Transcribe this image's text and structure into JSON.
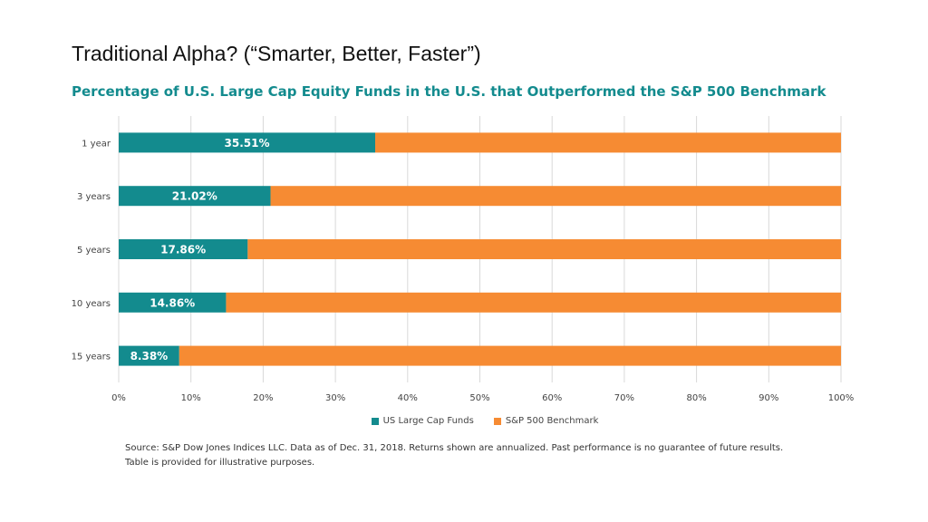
{
  "slide": {
    "title": "Traditional Alpha? (“Smarter, Better, Faster”)"
  },
  "chart_data": {
    "type": "bar",
    "orientation": "horizontal",
    "stacked": true,
    "title": "Percentage of U.S. Large Cap Equity Funds in the U.S. that Outperformed the S&P 500 Benchmark",
    "categories": [
      "1 year",
      "3 years",
      "5 years",
      "10 years",
      "15 years"
    ],
    "series": [
      {
        "name": "US Large Cap Funds",
        "values": [
          35.51,
          21.02,
          17.86,
          14.86,
          8.38
        ],
        "labels": [
          "35.51%",
          "21.02%",
          "17.86%",
          "14.86%",
          "8.38%"
        ],
        "color": "#138b8e"
      },
      {
        "name": "S&P 500 Benchmark",
        "values": [
          64.49,
          78.98,
          82.14,
          85.14,
          91.62
        ],
        "color": "#f68b33"
      }
    ],
    "x_ticks": [
      "0%",
      "10%",
      "20%",
      "30%",
      "40%",
      "50%",
      "60%",
      "70%",
      "80%",
      "90%",
      "100%"
    ],
    "xlim": [
      0,
      100
    ],
    "grid": true,
    "legend_position": "bottom"
  },
  "footnote": {
    "line1": "Source: S&P Dow Jones Indices LLC. Data as of Dec. 31, 2018.  Returns shown are annualized. Past performance  is no guarantee of future results.",
    "line2": "Table is provided for illustrative purposes."
  }
}
